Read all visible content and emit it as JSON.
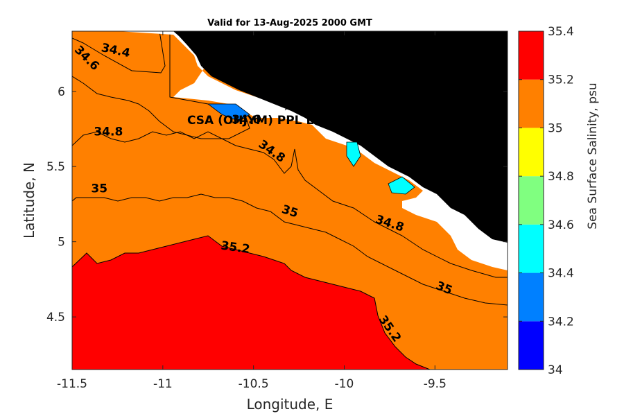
{
  "chart_data": {
    "type": "contour",
    "title": "Valid for 13-Aug-2025 2000 GMT",
    "xlabel": "Longitude, E",
    "ylabel": "Latitude, N",
    "xlim": [
      -11.5,
      -9.1
    ],
    "ylim": [
      4.15,
      6.4
    ],
    "xticks": [
      -11.5,
      -11,
      -10.5,
      -10,
      -9.5
    ],
    "xtick_labels": [
      "-11.5",
      "-11",
      "-10.5",
      "-10",
      "-9.5"
    ],
    "yticks": [
      4.5,
      5,
      5.5,
      6
    ],
    "ytick_labels": [
      "4.5",
      "5",
      "5.5",
      "6"
    ],
    "colorbar": {
      "label": "Sea Surface Salinity, psu",
      "levels": [
        34,
        34.2,
        34.4,
        34.6,
        34.8,
        35,
        35.2,
        35.4
      ],
      "level_labels": [
        "34",
        "34.2",
        "34.4",
        "34.6",
        "34.8",
        "35",
        "35.2",
        "35.4"
      ],
      "colors": [
        "#0000ff",
        "#0080ff",
        "#00ffff",
        "#80ff80",
        "#ffff00",
        "#ff8000",
        "#ff0000"
      ]
    },
    "land_color": "#000000",
    "contour_labels": [
      {
        "text": "34.4",
        "lon": -11.26,
        "lat": 6.27,
        "rot": 12
      },
      {
        "text": "34.6",
        "lon": -11.42,
        "lat": 6.22,
        "rot": 45
      },
      {
        "text": "34.6",
        "lon": -10.54,
        "lat": 5.81,
        "rot": 0
      },
      {
        "text": "34.8",
        "lon": -11.3,
        "lat": 5.73,
        "rot": 0
      },
      {
        "text": "34.8",
        "lon": -10.4,
        "lat": 5.6,
        "rot": 35
      },
      {
        "text": "34.8",
        "lon": -9.75,
        "lat": 5.12,
        "rot": 18
      },
      {
        "text": "35",
        "lon": -11.35,
        "lat": 5.35,
        "rot": 0
      },
      {
        "text": "35",
        "lon": -10.3,
        "lat": 5.2,
        "rot": 18
      },
      {
        "text": "35",
        "lon": -9.45,
        "lat": 4.69,
        "rot": 22
      },
      {
        "text": "35.2",
        "lon": -10.6,
        "lat": 4.96,
        "rot": 8
      },
      {
        "text": "35.2",
        "lon": -9.75,
        "lat": 4.42,
        "rot": 55
      }
    ],
    "site": {
      "text": "CSA (OHJYM) PPL EB",
      "lon": -10.3,
      "lat": 5.92
    }
  }
}
